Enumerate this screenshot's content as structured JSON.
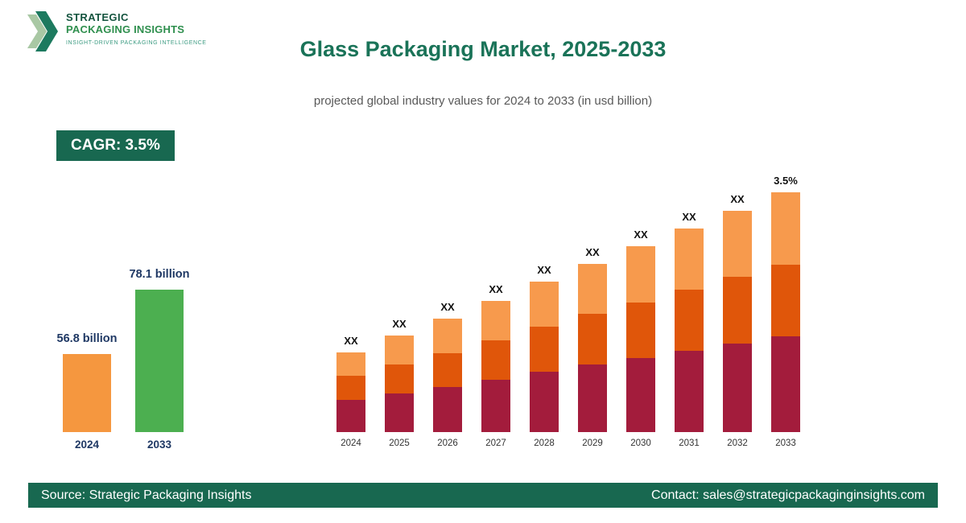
{
  "logo": {
    "line1": "STRATEGIC",
    "line2": "PACKAGING INSIGHTS",
    "tagline": "INSIGHT-DRIVEN PACKAGING INTELLIGENCE"
  },
  "header": {
    "title": "Glass Packaging Market, 2025-2033",
    "subtitle": "projected global industry values for 2024 to 2033 (in usd billion)"
  },
  "cagr_badge": "CAGR: 3.5%",
  "colors": {
    "brand_dark_green": "#186850",
    "title_green": "#1A7358",
    "navy_label": "#1F3864",
    "mini_bar_2024": "#F5973F",
    "mini_bar_2033": "#4CAF50",
    "segment_bottom": "#A31C3C",
    "segment_middle": "#E0560A",
    "segment_top": "#F79A4D"
  },
  "chart_data": [
    {
      "type": "bar",
      "name": "growth-summary",
      "categories": [
        "2024",
        "2033"
      ],
      "values": [
        56.8,
        78.1
      ],
      "value_labels": [
        "56.8 billion",
        "78.1 billion"
      ],
      "bar_colors": [
        "#F5973F",
        "#4CAF50"
      ],
      "unit": "usd billion"
    },
    {
      "type": "stacked-bar",
      "name": "projection-by-year",
      "categories": [
        "2024",
        "2025",
        "2026",
        "2027",
        "2028",
        "2029",
        "2030",
        "2031",
        "2032",
        "2033"
      ],
      "series": [
        {
          "name": "bottom",
          "color": "#A31C3C",
          "values": [
            40,
            48,
            56,
            65,
            75,
            84,
            92,
            101,
            110,
            119
          ]
        },
        {
          "name": "middle",
          "color": "#E0560A",
          "values": [
            30,
            36,
            42,
            49,
            56,
            63,
            69,
            76,
            83,
            89
          ]
        },
        {
          "name": "top",
          "color": "#F79A4D",
          "values": [
            29,
            36,
            43,
            49,
            56,
            62,
            70,
            76,
            82,
            90
          ]
        }
      ],
      "bar_labels": [
        "XX",
        "XX",
        "XX",
        "XX",
        "XX",
        "XX",
        "XX",
        "XX",
        "XX",
        "3.5%"
      ],
      "note": "bar values shown as XX placeholders on the chart; segment sizes estimated from bar heights",
      "legend": "none",
      "grid": false
    }
  ],
  "footer": {
    "source": "Source: Strategic Packaging Insights",
    "contact": "Contact: sales@strategicpackaginginsights.com"
  }
}
